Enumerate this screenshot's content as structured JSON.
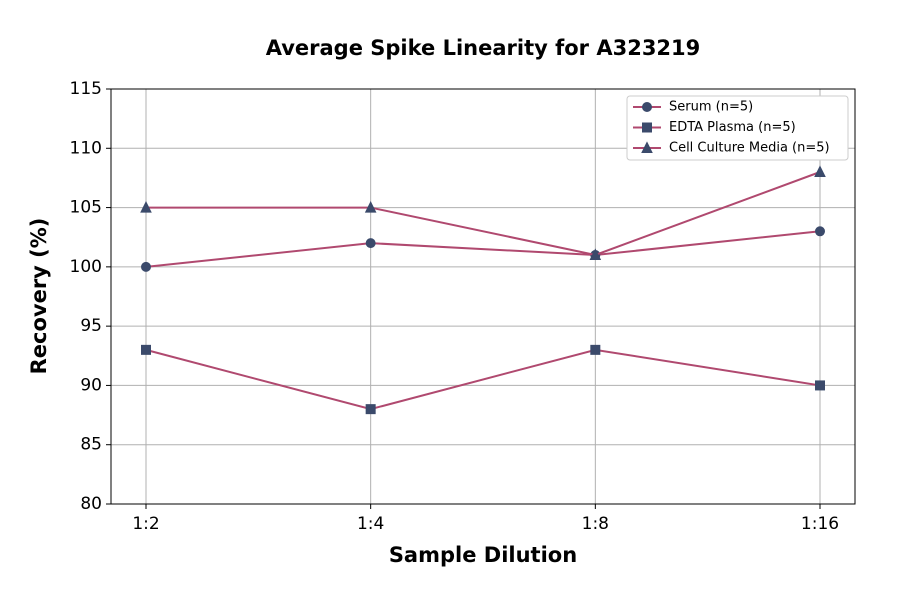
{
  "chart_data": {
    "type": "line",
    "title": "Average Spike Linearity for A323219",
    "x_label": "Sample Dilution",
    "y_label": "Recovery (%)",
    "categories": [
      "1:2",
      "1:4",
      "1:8",
      "1:16"
    ],
    "series": [
      {
        "name": "Serum (n=5)",
        "color": "#b0496f",
        "marker_color": "#3b4a6b",
        "marker": "circle",
        "values": [
          100,
          102,
          101,
          103
        ]
      },
      {
        "name": "EDTA Plasma (n=5)",
        "color": "#b0496f",
        "marker_color": "#3b4a6b",
        "marker": "square",
        "values": [
          93,
          88,
          93,
          90
        ]
      },
      {
        "name": "Cell Culture Media (n=5)",
        "color": "#b0496f",
        "marker_color": "#3b4a6b",
        "marker": "triangle",
        "values": [
          105,
          105,
          101,
          108
        ]
      }
    ],
    "ylim": [
      80,
      115
    ],
    "yticks": [
      80,
      85,
      90,
      95,
      100,
      105,
      110,
      115
    ],
    "grid": true,
    "legend": "upper right"
  }
}
